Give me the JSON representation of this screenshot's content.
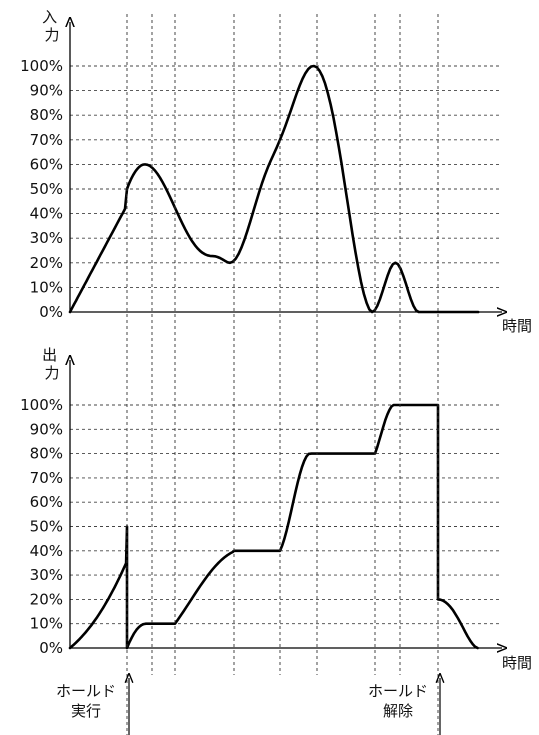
{
  "chart_data": [
    {
      "type": "line",
      "ylabel": "入力",
      "xlabel": "時間",
      "ylim": [
        0,
        100
      ],
      "y_ticks": [
        "0%",
        "10%",
        "20%",
        "30%",
        "40%",
        "50%",
        "60%",
        "70%",
        "80%",
        "90%",
        "100%"
      ],
      "grid": true,
      "series": [
        {
          "values": [
            0,
            50,
            60,
            20,
            60,
            100,
            20,
            0,
            20,
            0
          ]
        }
      ]
    },
    {
      "type": "line",
      "ylabel": "出力",
      "xlabel": "時間",
      "ylim": [
        0,
        100
      ],
      "y_ticks": [
        "0%",
        "10%",
        "20%",
        "30%",
        "40%",
        "50%",
        "60%",
        "70%",
        "80%",
        "90%",
        "100%"
      ],
      "grid": true,
      "series": [
        {
          "values": [
            0,
            50,
            0,
            10,
            10,
            40,
            40,
            80,
            80,
            100,
            100,
            20,
            0
          ]
        }
      ]
    }
  ],
  "events": [
    {
      "label_line1": "ホールド",
      "label_line2": "実行"
    },
    {
      "label_line1": "ホールド",
      "label_line2": "解除"
    }
  ],
  "colors": {
    "line": "#000000",
    "grid": "#444444",
    "text": "#111111"
  }
}
